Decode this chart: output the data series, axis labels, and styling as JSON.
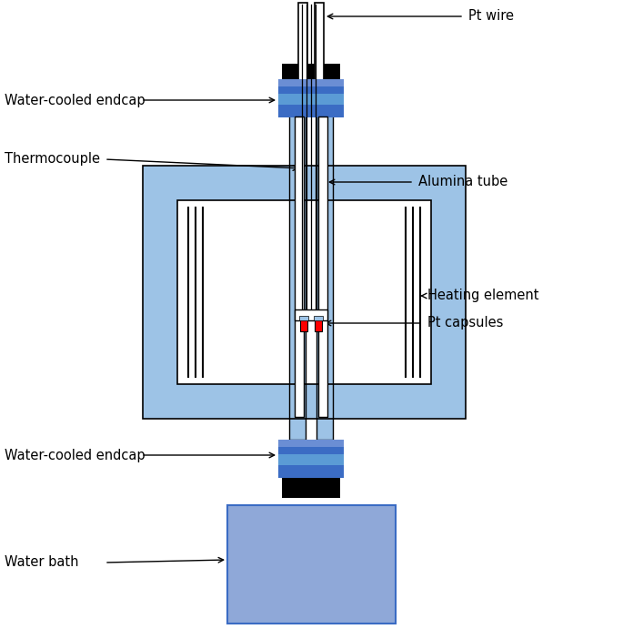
{
  "colors": {
    "blue_dark": "#3B6CC4",
    "blue_mid": "#5B9BD5",
    "blue_light": "#9DC3E6",
    "blue_very_light": "#BDD7EE",
    "blue_pale": "#AFC8E8",
    "water_bath": "#8FA8D8",
    "black": "#000000",
    "white": "#FFFFFF",
    "red": "#FF0000",
    "tube_blue": "#5B9BD5"
  },
  "labels": {
    "pt_wire": "Pt wire",
    "water_cooled_top": "Water-cooled endcap",
    "thermocouple": "Thermocouple",
    "alumina_tube": "Alumina tube",
    "heating_element": "Heating element",
    "pt_capsules": "Pt capsules",
    "water_cooled_bottom": "Water-cooled endcap",
    "water_bath": "Water bath"
  },
  "figsize": [
    6.85,
    7.02
  ],
  "dpi": 100
}
